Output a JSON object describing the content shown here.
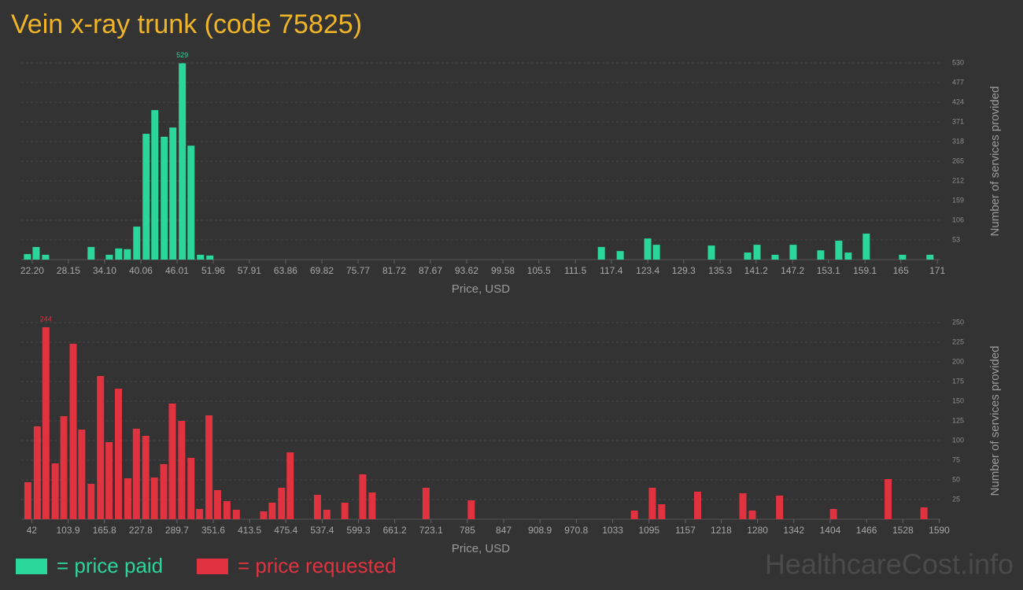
{
  "title": "Vein x-ray trunk (code 75825)",
  "legend": [
    {
      "label": "= price paid",
      "color": "#2bd69a"
    },
    {
      "label": "= price requested",
      "color": "#e0323f"
    }
  ],
  "watermark": "HealthcareCost.info",
  "chart_data": [
    {
      "type": "bar",
      "color": "#2bd69a",
      "xlabel": "Price, USD",
      "ylabel": "Number of services provided",
      "grid": true,
      "x": [
        21.42,
        22.85,
        24.4,
        31.89,
        34.87,
        36.42,
        37.84,
        39.39,
        40.94,
        42.36,
        43.91,
        45.33,
        46.88,
        48.31,
        49.86,
        51.41,
        115.77,
        118.87,
        123.39,
        124.82,
        133.86,
        139.81,
        141.36,
        144.33,
        147.3,
        151.83,
        154.8,
        156.35,
        159.32,
        165.27,
        169.79
      ],
      "values": [
        15,
        34,
        13,
        34,
        13,
        30,
        28,
        89,
        339,
        403,
        331,
        356,
        529,
        307,
        13,
        11,
        34,
        23,
        57,
        40,
        38,
        19,
        40,
        13,
        40,
        25,
        51,
        19,
        70,
        13,
        13
      ],
      "xlim": [
        20.4,
        171.5
      ],
      "xticks": [
        {
          "value": 22.2,
          "label": "22.20"
        },
        28.15,
        {
          "value": 34.1,
          "label": "34.10"
        },
        40.06,
        46.01,
        51.96,
        57.91,
        63.86,
        69.82,
        75.77,
        81.72,
        87.67,
        93.62,
        99.58,
        105.5,
        111.5,
        117.4,
        123.4,
        129.3,
        135.3,
        141.2,
        147.2,
        153.1,
        159.1,
        165,
        171
      ],
      "ylim": [
        0,
        530
      ],
      "yticks": [
        53,
        106,
        159,
        212,
        265,
        318,
        371,
        424,
        477,
        530
      ]
    },
    {
      "type": "bar",
      "color": "#e0323f",
      "xlabel": "Price, USD",
      "ylabel": "Number of services provided",
      "grid": true,
      "x": [
        35.3,
        51.3,
        66.0,
        81.9,
        96.6,
        112.6,
        127.2,
        143.2,
        159.2,
        173.8,
        189.8,
        205.8,
        220.4,
        236.4,
        251.1,
        267.0,
        281.7,
        297.7,
        313.6,
        328.3,
        344.3,
        358.9,
        374.9,
        390.9,
        437.5,
        452.1,
        468.1,
        482.8,
        529.4,
        545.3,
        576.0,
        606.6,
        622.6,
        714.5,
        791.7,
        1070.0,
        1100.6,
        1116.6,
        1177.9,
        1255.1,
        1271.1,
        1317.7,
        1409.6,
        1502.8,
        1564.0
      ],
      "values": [
        47,
        118,
        244,
        71,
        131,
        223,
        114,
        45,
        182,
        98,
        166,
        52,
        115,
        106,
        53,
        70,
        147,
        125,
        78,
        13,
        132,
        37,
        23,
        12,
        10,
        21,
        40,
        85,
        31,
        12,
        21,
        57,
        34,
        40,
        24,
        11,
        40,
        19,
        35,
        33,
        11,
        30,
        13,
        51,
        15
      ],
      "xlim": [
        24,
        1592
      ],
      "xticks": [
        42,
        103.9,
        165.8,
        227.8,
        289.7,
        351.6,
        413.5,
        475.4,
        537.4,
        599.3,
        661.2,
        723.1,
        785,
        847,
        908.9,
        970.8,
        1033,
        1095,
        1157,
        1218,
        1280,
        1342,
        1404,
        1466,
        1528,
        1590
      ],
      "ylim": [
        0,
        250
      ],
      "yticks": [
        25,
        50,
        75,
        100,
        125,
        150,
        175,
        200,
        225,
        250
      ]
    }
  ]
}
